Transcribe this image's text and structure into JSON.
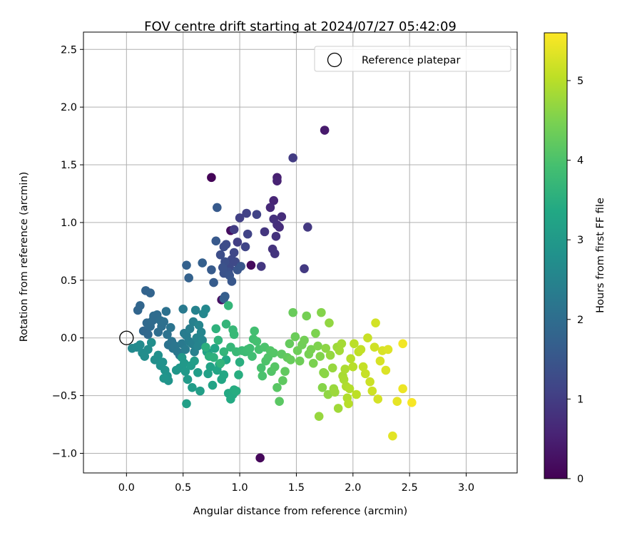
{
  "chart_data": {
    "type": "scatter",
    "title": "FOV centre drift starting at 2024/07/27 05:42:09",
    "xlabel": "Angular distance from reference (arcmin)",
    "ylabel": "Rotation from reference (arcmin)",
    "xlim": [
      -0.38,
      3.45
    ],
    "ylim": [
      -1.17,
      2.65
    ],
    "xticks": [
      "0.0",
      "0.5",
      "1.0",
      "1.5",
      "2.0",
      "2.5",
      "3.0"
    ],
    "yticks": [
      "−1.0",
      "−0.5",
      "0.0",
      "0.5",
      "1.0",
      "1.5",
      "2.0",
      "2.5"
    ],
    "xtick_values": [
      0,
      0.5,
      1,
      1.5,
      2,
      2.5,
      3
    ],
    "ytick_values": [
      -1,
      -0.5,
      0,
      0.5,
      1,
      1.5,
      2,
      2.5
    ],
    "grid": true,
    "colormap": "viridis",
    "colorbar": {
      "label": "Hours from first FF file",
      "range": [
        0,
        5.6
      ],
      "ticks": [
        "0",
        "1",
        "2",
        "3",
        "4",
        "5"
      ],
      "tick_values": [
        0,
        1,
        2,
        3,
        4,
        5
      ]
    },
    "legend": {
      "location": "upper right",
      "entries": [
        "Reference platepar"
      ]
    },
    "reference_point": {
      "x": 0.0,
      "y": 0.0,
      "marker": "hollow-circle"
    },
    "series": [
      {
        "points": [
          [
            0.75,
            1.39,
            0.05
          ],
          [
            1.18,
            -1.04,
            0.1
          ],
          [
            1.1,
            0.63,
            0.15
          ],
          [
            0.92,
            0.93,
            0.2
          ],
          [
            0.84,
            0.33,
            0.25
          ],
          [
            1.75,
            1.8,
            0.4
          ],
          [
            1.33,
            1.39,
            0.5
          ],
          [
            1.33,
            1.36,
            0.55
          ],
          [
            1.3,
            1.19,
            0.6
          ],
          [
            1.27,
            1.13,
            0.65
          ],
          [
            1.35,
            0.96,
            0.7
          ],
          [
            1.37,
            1.05,
            0.72
          ],
          [
            1.33,
            0.98,
            0.75
          ],
          [
            1.3,
            1.03,
            0.78
          ],
          [
            1.32,
            0.88,
            0.8
          ],
          [
            1.29,
            0.77,
            0.82
          ],
          [
            1.31,
            0.73,
            0.85
          ],
          [
            1.22,
            0.92,
            0.88
          ],
          [
            1.19,
            0.62,
            0.9
          ],
          [
            1.6,
            0.96,
            0.92
          ],
          [
            1.57,
            0.6,
            0.95
          ],
          [
            1.47,
            1.56,
            0.98
          ],
          [
            0.95,
            0.94,
            1.0
          ],
          [
            0.98,
            0.83,
            1.02
          ],
          [
            1.0,
            1.04,
            1.05
          ],
          [
            1.06,
            1.08,
            1.08
          ],
          [
            1.15,
            1.07,
            1.1
          ],
          [
            1.07,
            0.9,
            1.12
          ],
          [
            1.05,
            0.79,
            1.15
          ],
          [
            0.95,
            0.74,
            1.18
          ],
          [
            0.93,
            0.68,
            1.2
          ],
          [
            0.96,
            0.66,
            1.22
          ],
          [
            0.91,
            0.61,
            1.25
          ],
          [
            0.88,
            0.81,
            1.28
          ],
          [
            0.86,
            0.79,
            1.3
          ],
          [
            0.83,
            0.72,
            1.32
          ],
          [
            0.87,
            0.66,
            1.35
          ],
          [
            0.9,
            0.57,
            1.38
          ],
          [
            0.86,
            0.56,
            1.4
          ],
          [
            0.85,
            0.61,
            1.42
          ],
          [
            0.91,
            0.54,
            1.45
          ],
          [
            0.98,
            0.59,
            1.48
          ],
          [
            1.01,
            0.62,
            1.5
          ],
          [
            0.93,
            0.49,
            1.52
          ],
          [
            0.79,
            0.84,
            1.55
          ],
          [
            0.8,
            1.13,
            1.58
          ],
          [
            0.75,
            0.59,
            1.6
          ],
          [
            0.77,
            0.48,
            1.62
          ],
          [
            0.87,
            0.36,
            1.65
          ],
          [
            0.86,
            0.34,
            1.68
          ],
          [
            0.67,
            0.65,
            1.7
          ],
          [
            0.53,
            0.63,
            1.72
          ],
          [
            0.55,
            0.52,
            1.75
          ],
          [
            0.17,
            0.41,
            1.78
          ],
          [
            0.21,
            0.39,
            1.8
          ],
          [
            0.1,
            0.24,
            1.82
          ],
          [
            0.12,
            0.28,
            1.84
          ],
          [
            0.15,
            0.06,
            1.86
          ],
          [
            0.19,
            0.03,
            1.88
          ],
          [
            0.18,
            0.13,
            1.9
          ],
          [
            0.21,
            0.1,
            1.92
          ],
          [
            0.23,
            0.15,
            1.94
          ],
          [
            0.24,
            0.19,
            1.96
          ],
          [
            0.27,
            0.2,
            1.98
          ],
          [
            0.28,
            0.05,
            2.0
          ],
          [
            0.3,
            0.15,
            2.02
          ],
          [
            0.31,
            0.1,
            2.04
          ],
          [
            0.33,
            0.14,
            2.06
          ],
          [
            0.35,
            0.23,
            2.08
          ],
          [
            0.36,
            0.03,
            2.1
          ],
          [
            0.37,
            -0.06,
            2.12
          ],
          [
            0.39,
            0.09,
            2.14
          ],
          [
            0.4,
            -0.03,
            2.16
          ],
          [
            0.41,
            -0.09,
            2.18
          ],
          [
            0.43,
            -0.07,
            2.2
          ],
          [
            0.45,
            -0.12,
            2.22
          ],
          [
            0.47,
            -0.15,
            2.24
          ],
          [
            0.49,
            -0.05,
            2.26
          ],
          [
            0.5,
            0.25,
            2.28
          ],
          [
            0.51,
            0.04,
            2.3
          ],
          [
            0.52,
            -0.1,
            2.32
          ],
          [
            0.53,
            0.02,
            2.34
          ],
          [
            0.55,
            -0.03,
            2.36
          ],
          [
            0.56,
            0.08,
            2.38
          ],
          [
            0.58,
            -0.05,
            2.4
          ],
          [
            0.59,
            0.14,
            2.42
          ],
          [
            0.6,
            -0.12,
            2.44
          ],
          [
            0.61,
            0.24,
            2.46
          ],
          [
            0.62,
            0.0,
            2.48
          ],
          [
            0.63,
            -0.07,
            2.5
          ],
          [
            0.64,
            0.11,
            2.52
          ],
          [
            0.66,
            0.05,
            2.54
          ],
          [
            0.67,
            -0.02,
            2.56
          ],
          [
            0.68,
            0.21,
            2.58
          ],
          [
            0.7,
            0.25,
            2.6
          ],
          [
            0.05,
            -0.09,
            2.62
          ],
          [
            0.09,
            -0.08,
            2.64
          ],
          [
            0.12,
            -0.06,
            2.66
          ],
          [
            0.14,
            -0.13,
            2.68
          ],
          [
            0.16,
            -0.16,
            2.7
          ],
          [
            0.19,
            -0.1,
            2.72
          ],
          [
            0.22,
            -0.04,
            2.74
          ],
          [
            0.25,
            -0.19,
            2.76
          ],
          [
            0.28,
            -0.15,
            2.78
          ],
          [
            0.3,
            -0.24,
            2.8
          ],
          [
            0.32,
            -0.21,
            2.82
          ],
          [
            0.34,
            -0.28,
            2.84
          ],
          [
            0.36,
            -0.33,
            2.86
          ],
          [
            0.37,
            -0.37,
            2.88
          ],
          [
            0.33,
            -0.35,
            2.9
          ],
          [
            0.44,
            -0.28,
            2.92
          ],
          [
            0.47,
            -0.26,
            2.94
          ],
          [
            0.49,
            -0.17,
            2.96
          ],
          [
            0.51,
            -0.22,
            2.98
          ],
          [
            0.52,
            -0.29,
            3.0
          ],
          [
            0.54,
            -0.36,
            3.02
          ],
          [
            0.57,
            -0.24,
            3.04
          ],
          [
            0.58,
            -0.43,
            3.06
          ],
          [
            0.6,
            -0.2,
            3.08
          ],
          [
            0.63,
            -0.3,
            3.1
          ],
          [
            0.65,
            -0.46,
            3.12
          ],
          [
            0.53,
            -0.57,
            3.14
          ],
          [
            0.71,
            -0.12,
            3.16
          ],
          [
            0.72,
            -0.31,
            3.18
          ],
          [
            0.73,
            -0.15,
            3.2
          ],
          [
            0.74,
            -0.25,
            3.22
          ],
          [
            0.76,
            -0.41,
            3.24
          ],
          [
            0.78,
            -0.09,
            3.26
          ],
          [
            0.8,
            -0.28,
            3.28
          ],
          [
            0.82,
            -0.23,
            3.3
          ],
          [
            0.84,
            -0.36,
            3.32
          ],
          [
            0.86,
            -0.32,
            3.34
          ],
          [
            0.88,
            -0.19,
            3.36
          ],
          [
            0.9,
            -0.48,
            3.38
          ],
          [
            0.92,
            -0.53,
            3.4
          ],
          [
            0.94,
            -0.49,
            3.42
          ],
          [
            0.95,
            -0.45,
            3.44
          ],
          [
            0.97,
            -0.46,
            3.46
          ],
          [
            0.99,
            -0.32,
            3.48
          ],
          [
            1.0,
            -0.21,
            3.5
          ],
          [
            0.7,
            -0.08,
            3.52
          ],
          [
            0.73,
            -0.16,
            3.54
          ],
          [
            0.77,
            -0.17,
            3.56
          ],
          [
            0.79,
            0.08,
            3.58
          ],
          [
            0.81,
            -0.02,
            3.6
          ],
          [
            0.83,
            -0.22,
            3.62
          ],
          [
            0.86,
            -0.12,
            3.64
          ],
          [
            0.88,
            0.12,
            3.66
          ],
          [
            0.9,
            0.28,
            3.68
          ],
          [
            0.92,
            -0.08,
            3.7
          ],
          [
            0.94,
            0.07,
            3.72
          ],
          [
            0.95,
            0.03,
            3.74
          ],
          [
            0.97,
            -0.12,
            3.76
          ],
          [
            1.02,
            -0.11,
            3.78
          ],
          [
            1.05,
            -0.12,
            3.8
          ],
          [
            1.07,
            -0.1,
            3.82
          ],
          [
            1.09,
            -0.09,
            3.84
          ],
          [
            1.11,
            -0.16,
            3.86
          ],
          [
            1.12,
            -0.01,
            3.88
          ],
          [
            1.13,
            0.06,
            3.9
          ],
          [
            1.15,
            -0.03,
            3.92
          ],
          [
            1.17,
            -0.1,
            3.94
          ],
          [
            1.19,
            -0.26,
            3.96
          ],
          [
            1.2,
            -0.33,
            3.98
          ],
          [
            1.22,
            -0.08,
            4.0
          ],
          [
            1.23,
            -0.2,
            4.02
          ],
          [
            1.25,
            -0.17,
            4.04
          ],
          [
            1.27,
            -0.11,
            4.06
          ],
          [
            1.28,
            -0.29,
            4.08
          ],
          [
            1.3,
            -0.13,
            4.1
          ],
          [
            1.31,
            -0.25,
            4.12
          ],
          [
            1.33,
            -0.43,
            4.14
          ],
          [
            1.35,
            -0.55,
            4.16
          ],
          [
            1.37,
            -0.14,
            4.18
          ],
          [
            1.38,
            -0.37,
            4.2
          ],
          [
            1.4,
            -0.29,
            4.22
          ],
          [
            1.42,
            -0.17,
            4.24
          ],
          [
            1.44,
            -0.05,
            4.26
          ],
          [
            1.45,
            -0.19,
            4.28
          ],
          [
            1.47,
            0.22,
            4.3
          ],
          [
            1.49,
            0.01,
            4.32
          ],
          [
            1.51,
            -0.11,
            4.34
          ],
          [
            1.53,
            -0.2,
            4.36
          ],
          [
            1.55,
            -0.06,
            4.38
          ],
          [
            1.57,
            -0.02,
            4.4
          ],
          [
            1.59,
            0.19,
            4.42
          ],
          [
            1.61,
            -0.14,
            4.44
          ],
          [
            1.63,
            -0.1,
            4.46
          ],
          [
            1.65,
            -0.22,
            4.48
          ],
          [
            1.67,
            0.04,
            4.5
          ],
          [
            1.69,
            -0.07,
            4.52
          ],
          [
            1.71,
            -0.16,
            4.54
          ],
          [
            1.72,
            0.22,
            4.56
          ],
          [
            1.73,
            -0.43,
            4.58
          ],
          [
            1.74,
            -0.3,
            4.6
          ],
          [
            1.75,
            -0.31,
            4.62
          ],
          [
            1.76,
            -0.09,
            4.64
          ],
          [
            1.78,
            -0.49,
            4.66
          ],
          [
            1.79,
            0.13,
            4.68
          ],
          [
            1.8,
            -0.15,
            4.7
          ],
          [
            1.82,
            -0.26,
            4.72
          ],
          [
            1.83,
            -0.44,
            4.74
          ],
          [
            1.84,
            -0.47,
            4.76
          ],
          [
            1.86,
            -0.08,
            4.78
          ],
          [
            1.87,
            -0.61,
            4.8
          ],
          [
            1.88,
            -0.11,
            4.82
          ],
          [
            1.9,
            -0.05,
            4.84
          ],
          [
            1.91,
            -0.33,
            4.86
          ],
          [
            1.92,
            -0.36,
            4.88
          ],
          [
            1.93,
            -0.27,
            4.9
          ],
          [
            1.94,
            -0.42,
            4.92
          ],
          [
            1.95,
            -0.52,
            4.94
          ],
          [
            1.97,
            -0.44,
            4.96
          ],
          [
            1.98,
            -0.18,
            4.98
          ],
          [
            2.0,
            -0.25,
            5.0
          ],
          [
            2.01,
            -0.05,
            5.02
          ],
          [
            2.03,
            -0.49,
            5.04
          ],
          [
            2.05,
            -0.12,
            5.06
          ],
          [
            2.07,
            -0.1,
            5.08
          ],
          [
            2.09,
            -0.25,
            5.1
          ],
          [
            2.11,
            -0.31,
            5.12
          ],
          [
            2.13,
            0.0,
            5.14
          ],
          [
            2.15,
            -0.38,
            5.16
          ],
          [
            2.17,
            -0.46,
            5.18
          ],
          [
            2.19,
            -0.08,
            5.2
          ],
          [
            2.2,
            0.13,
            5.22
          ],
          [
            2.22,
            -0.53,
            5.24
          ],
          [
            2.24,
            -0.2,
            5.26
          ],
          [
            2.26,
            -0.11,
            5.28
          ],
          [
            2.29,
            -0.28,
            5.3
          ],
          [
            2.31,
            -0.1,
            5.32
          ],
          [
            2.35,
            -0.85,
            5.36
          ],
          [
            2.39,
            -0.55,
            5.4
          ],
          [
            2.44,
            -0.44,
            5.45
          ],
          [
            2.44,
            -0.05,
            5.5
          ],
          [
            2.52,
            -0.56,
            5.55
          ],
          [
            1.7,
            -0.68,
            4.72
          ],
          [
            1.96,
            -0.57,
            5.0
          ]
        ]
      }
    ]
  }
}
